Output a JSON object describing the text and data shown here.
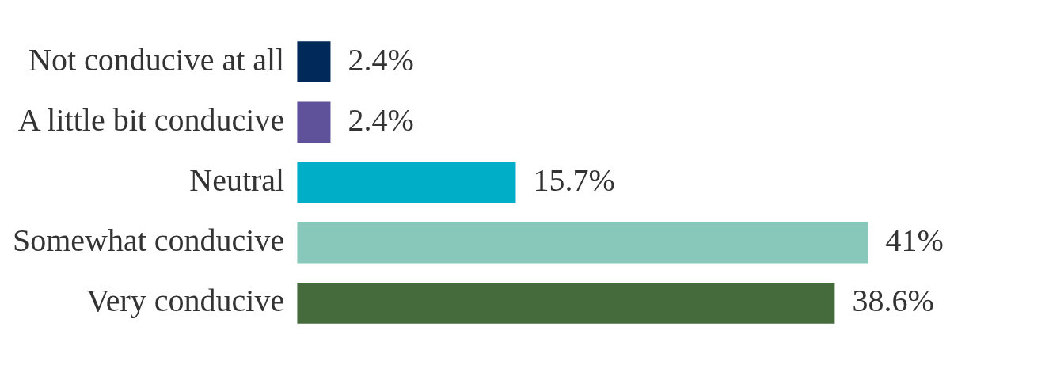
{
  "chart_data": {
    "type": "bar",
    "orientation": "horizontal",
    "tick_labels": "y",
    "categories": [
      "Not conducive at all",
      "A little bit conducive",
      "Neutral",
      "Somewhat conducive",
      "Very conducive"
    ],
    "values": [
      2.4,
      2.4,
      15.7,
      41,
      38.6
    ],
    "colors": [
      "#012a5a",
      "#5f519a",
      "#00aec7",
      "#88c8bb",
      "#456b3c"
    ],
    "value_labels": [
      "2.4%",
      "2.4%",
      "15.7%",
      "41%",
      "38.6%"
    ]
  }
}
